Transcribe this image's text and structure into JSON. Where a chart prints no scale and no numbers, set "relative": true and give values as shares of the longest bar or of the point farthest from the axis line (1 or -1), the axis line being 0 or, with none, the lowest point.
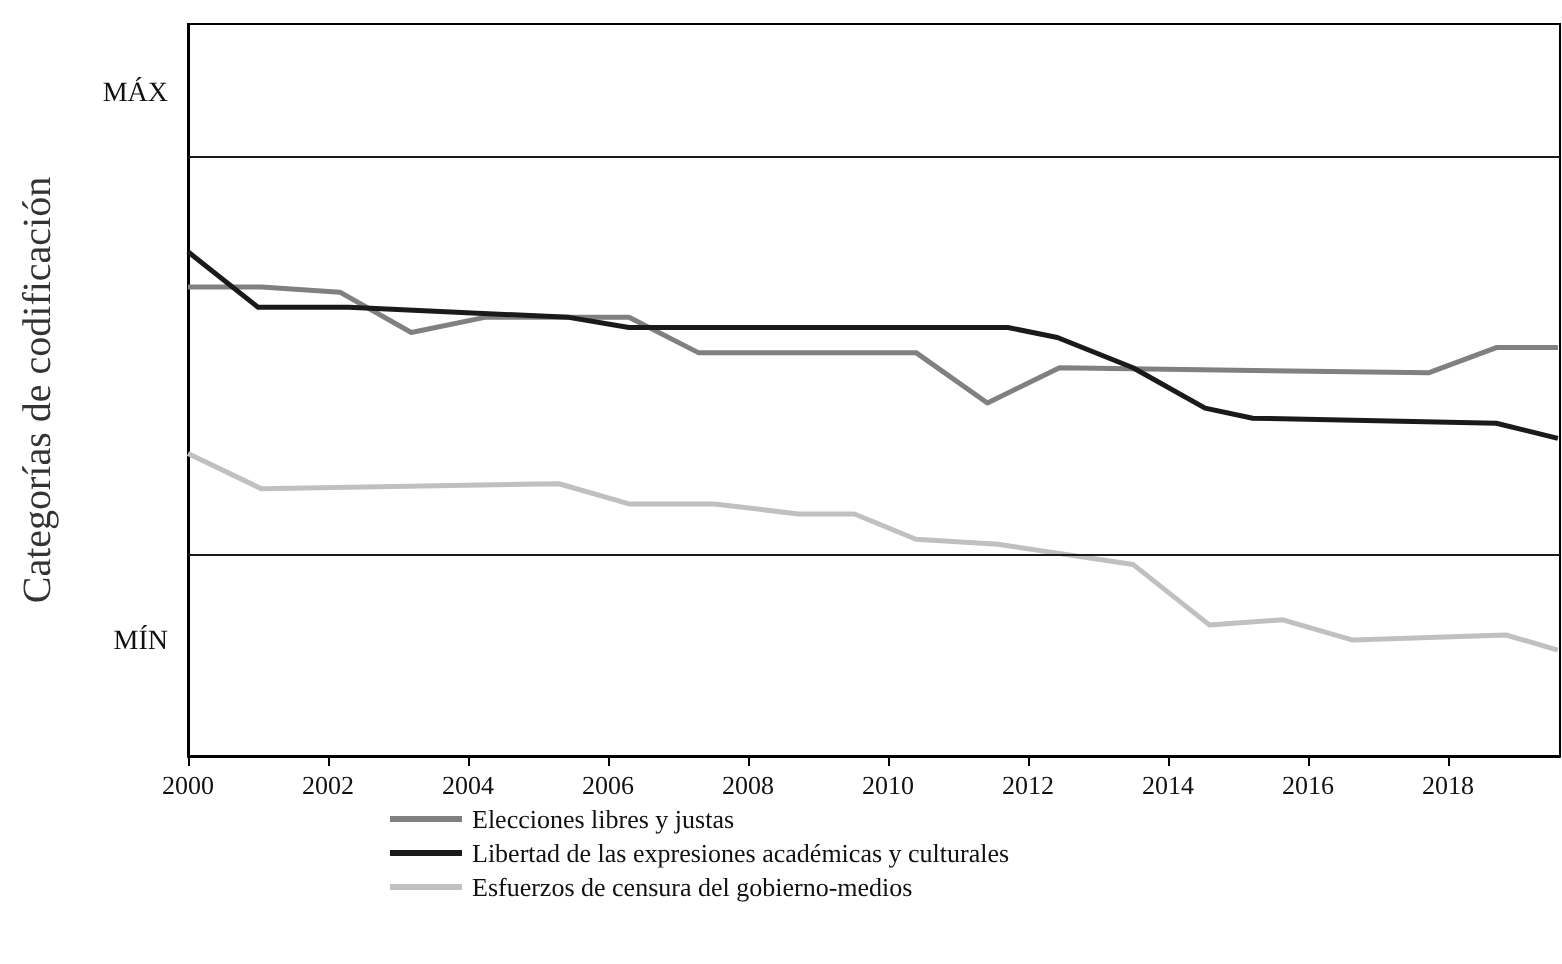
{
  "chart_data": {
    "type": "line",
    "relative": true,
    "ylabel": "Categorías de codificación",
    "annotations": [
      "MÁX",
      "MÍN"
    ],
    "xlim": [
      2000,
      2019.6
    ],
    "xticks": [
      2000,
      2002,
      2004,
      2006,
      2008,
      2010,
      2012,
      2014,
      2016,
      2018
    ],
    "ref_lines": [
      {
        "axis": "y",
        "value": 0.4,
        "color": "#1a1a1a"
      },
      {
        "axis": "y",
        "value": 1.19,
        "color": "#1a1a1a"
      }
    ],
    "legend": "bottom",
    "series": [
      {
        "name": "Elecciones libres y justas",
        "color": "#808080",
        "x": [
          2000,
          2001.05,
          2002.17,
          2003.19,
          2004.24,
          2006.3,
          2007.29,
          2010.4,
          2011.42,
          2012.45,
          2017.72,
          2018.69,
          2019.57
        ],
        "values": [
          0.93,
          0.93,
          0.92,
          0.84,
          0.87,
          0.87,
          0.8,
          0.8,
          0.7,
          0.77,
          0.76,
          0.81,
          0.81
        ]
      },
      {
        "name": "Libertad de las expresiones académicas y culturales",
        "color": "#1a1a1a",
        "x": [
          2000,
          2001.0,
          2002.3,
          2005.44,
          2006.3,
          2008.72,
          2011.71,
          2012.42,
          2013.5,
          2014.53,
          2015.21,
          2018.69,
          2019.57
        ],
        "values": [
          1.0,
          0.89,
          0.89,
          0.87,
          0.85,
          0.85,
          0.85,
          0.83,
          0.77,
          0.69,
          0.67,
          0.66,
          0.63
        ]
      },
      {
        "name": "Esfuerzos de censura del gobierno-medios",
        "color": "#c0c0c0",
        "x": [
          2000,
          2001.05,
          2005.3,
          2006.3,
          2007.52,
          2008.72,
          2009.52,
          2010.4,
          2011.57,
          2013.5,
          2014.59,
          2015.64,
          2016.64,
          2018.83,
          2019.57
        ],
        "values": [
          0.6,
          0.53,
          0.54,
          0.5,
          0.5,
          0.48,
          0.48,
          0.43,
          0.42,
          0.38,
          0.26,
          0.27,
          0.23,
          0.24,
          0.21
        ]
      }
    ]
  }
}
